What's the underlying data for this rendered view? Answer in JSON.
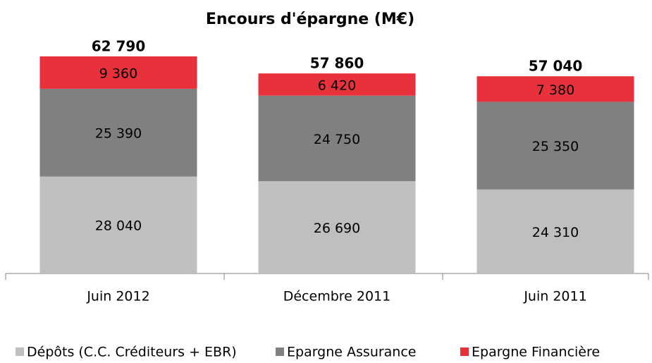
{
  "chart_data": {
    "type": "stacked_bar",
    "title": "Encours d'épargne (M€)",
    "categories": [
      "Juin 2012",
      "Décembre 2011",
      "Juin 2011"
    ],
    "series": [
      {
        "name": "Dépôts (C.C. Créditeurs + EBR)",
        "color": "#bfbfbf",
        "values": [
          28040,
          26690,
          24310
        ],
        "value_labels": [
          "28 040",
          "26 690",
          "24 310"
        ]
      },
      {
        "name": "Epargne Assurance",
        "color": "#808080",
        "values": [
          25390,
          24750,
          25350
        ],
        "value_labels": [
          "25 390",
          "24 750",
          "25 350"
        ]
      },
      {
        "name": "Epargne Financière",
        "color": "#e8313b",
        "values": [
          9360,
          6420,
          7380
        ],
        "value_labels": [
          "9 360",
          "6 420",
          "7 380"
        ]
      }
    ],
    "totals": [
      62790,
      57860,
      57040
    ],
    "total_labels": [
      "62 790",
      "57 860",
      "57 040"
    ],
    "legend": "bottom"
  }
}
